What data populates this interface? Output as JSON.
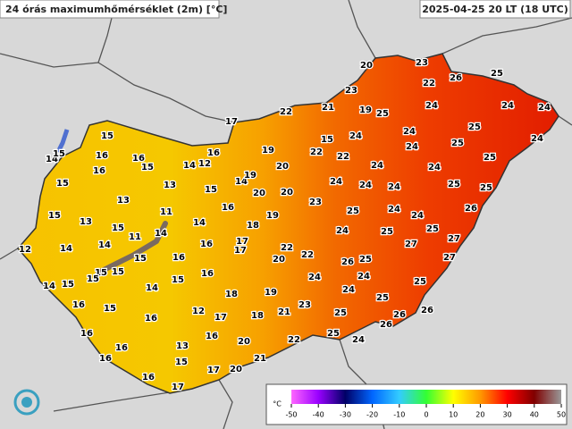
{
  "header": {
    "title": "24 órás maximumhőmérséklet (2m) [°C]",
    "datetime": "2025-04-25 20 LT (18 UTC)"
  },
  "legend": {
    "unit": "°C",
    "ticks": [
      -50,
      -40,
      -30,
      -20,
      -10,
      0,
      10,
      20,
      30,
      40,
      50
    ],
    "colors": [
      "#ff66ff",
      "#9900ff",
      "#000066",
      "#0066ff",
      "#33ccff",
      "#33ff33",
      "#ffff00",
      "#ff9900",
      "#ff0000",
      "#800000",
      "#999999"
    ]
  },
  "stations": [
    20,
    23,
    26,
    25,
    22,
    23,
    22,
    21,
    19,
    25,
    24,
    24,
    24,
    17,
    15,
    24,
    24,
    25,
    24,
    15,
    19,
    22,
    22,
    24,
    25,
    25,
    16,
    16,
    14,
    15,
    16,
    12,
    14,
    16,
    15,
    20,
    24,
    24,
    14,
    19,
    15,
    13,
    15,
    20,
    20,
    24,
    24,
    24,
    25,
    25,
    13,
    23,
    11,
    16,
    15,
    13,
    19,
    25,
    24,
    24,
    26,
    15,
    14,
    18,
    24,
    25,
    25,
    11,
    14,
    14,
    16,
    17,
    12,
    14,
    17,
    22,
    27,
    27,
    15,
    16,
    20,
    22,
    25,
    26,
    27,
    15,
    15,
    15,
    16,
    24,
    24,
    14,
    15,
    14,
    15,
    18,
    19,
    24,
    25,
    25,
    16,
    15,
    12,
    17,
    18,
    21,
    23,
    25,
    26,
    26,
    16,
    16,
    16,
    20,
    22,
    25,
    24,
    26,
    16,
    13,
    16,
    15,
    21,
    20,
    17,
    16,
    17
  ]
}
